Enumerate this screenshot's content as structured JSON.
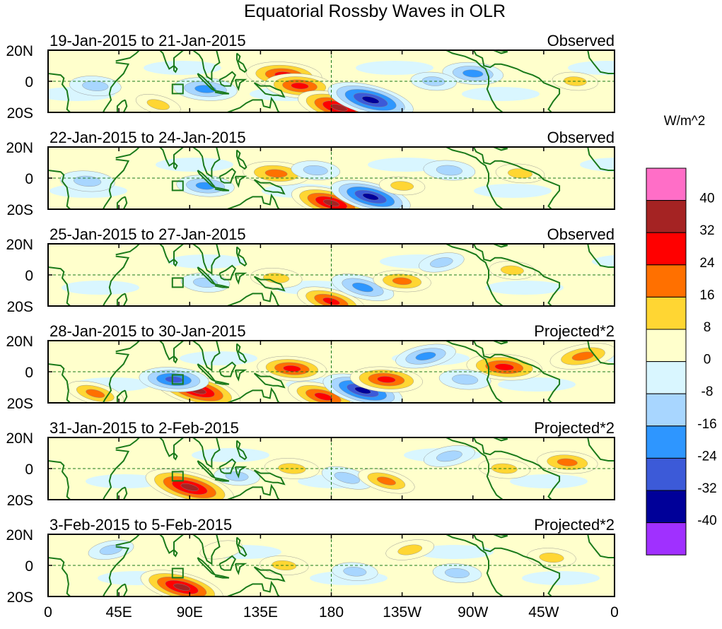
{
  "chart_data": {
    "type": "heatmap",
    "title": "Equatorial Rossby Waves in OLR",
    "colorbar": {
      "unit_label": "W/m^2",
      "tick_labels": [
        "40",
        "32",
        "24",
        "16",
        "8",
        "0",
        "-8",
        "-16",
        "-24",
        "-32",
        "-40"
      ],
      "levels": [
        -40,
        -32,
        -24,
        -16,
        -8,
        0,
        8,
        16,
        24,
        32,
        40
      ],
      "colors_top_to_bottom": [
        "#ff6ec7",
        "#a52323",
        "#ff0000",
        "#ff7000",
        "#ffd633",
        "#ffffcc",
        "#d9f6ff",
        "#a8d6ff",
        "#2e96ff",
        "#3c5ad8",
        "#000099",
        "#a030ff"
      ]
    },
    "x_axis": {
      "ticks": [
        {
          "lon": 0,
          "label": "0"
        },
        {
          "lon": 45,
          "label": "45E"
        },
        {
          "lon": 90,
          "label": "90E"
        },
        {
          "lon": 135,
          "label": "135E"
        },
        {
          "lon": 180,
          "label": "180"
        },
        {
          "lon": 225,
          "label": "135W"
        },
        {
          "lon": 270,
          "label": "90W"
        },
        {
          "lon": 315,
          "label": "45W"
        },
        {
          "lon": 360,
          "label": "0"
        }
      ],
      "range": [
        0,
        360
      ]
    },
    "y_axis": {
      "ticks": [
        {
          "lat": 20,
          "label": "20N"
        },
        {
          "lat": 0,
          "label": "0"
        },
        {
          "lat": -20,
          "label": "20S"
        }
      ],
      "range": [
        -20,
        20
      ]
    },
    "panels": [
      {
        "date_range": "19-Jan-2015 to 21-Jan-2015",
        "status": "Observed",
        "anomalies": [
          {
            "lon": 150,
            "lat": 4,
            "value": 30
          },
          {
            "lon": 160,
            "lat": -3,
            "value": 26
          },
          {
            "lon": 185,
            "lat": -17,
            "value": 36
          },
          {
            "lon": 205,
            "lat": -12,
            "value": -38
          },
          {
            "lon": 270,
            "lat": 5,
            "value": -20
          },
          {
            "lon": 245,
            "lat": 0,
            "value": -10
          },
          {
            "lon": 100,
            "lat": -5,
            "value": -22
          },
          {
            "lon": 30,
            "lat": -3,
            "value": -14
          },
          {
            "lon": 70,
            "lat": -15,
            "value": 10
          },
          {
            "lon": 335,
            "lat": 0,
            "value": 10
          }
        ]
      },
      {
        "date_range": "22-Jan-2015 to 24-Jan-2015",
        "status": "Observed",
        "anomalies": [
          {
            "lon": 145,
            "lat": 3,
            "value": 24
          },
          {
            "lon": 180,
            "lat": -16,
            "value": 34
          },
          {
            "lon": 205,
            "lat": -12,
            "value": -34
          },
          {
            "lon": 225,
            "lat": -5,
            "value": 10
          },
          {
            "lon": 255,
            "lat": 5,
            "value": -14
          },
          {
            "lon": 300,
            "lat": 3,
            "value": 12
          },
          {
            "lon": 25,
            "lat": -2,
            "value": -16
          },
          {
            "lon": 100,
            "lat": -5,
            "value": -18
          },
          {
            "lon": 170,
            "lat": 5,
            "value": -12
          }
        ]
      },
      {
        "date_range": "25-Jan-2015 to 27-Jan-2015",
        "status": "Observed",
        "anomalies": [
          {
            "lon": 180,
            "lat": -17,
            "value": 26
          },
          {
            "lon": 200,
            "lat": -8,
            "value": -22
          },
          {
            "lon": 225,
            "lat": -4,
            "value": 18
          },
          {
            "lon": 145,
            "lat": -2,
            "value": 14
          },
          {
            "lon": 250,
            "lat": 8,
            "value": -10
          },
          {
            "lon": 295,
            "lat": 3,
            "value": 10
          },
          {
            "lon": 100,
            "lat": -5,
            "value": -12
          }
        ]
      },
      {
        "date_range": "28-Jan-2015 to 30-Jan-2015",
        "status": "Projected*2",
        "anomalies": [
          {
            "lon": 95,
            "lat": -12,
            "value": 38
          },
          {
            "lon": 175,
            "lat": -16,
            "value": 28
          },
          {
            "lon": 200,
            "lat": -12,
            "value": -34
          },
          {
            "lon": 215,
            "lat": -5,
            "value": 28
          },
          {
            "lon": 155,
            "lat": 2,
            "value": 26
          },
          {
            "lon": 290,
            "lat": 3,
            "value": 30
          },
          {
            "lon": 340,
            "lat": 10,
            "value": 24
          },
          {
            "lon": 80,
            "lat": -5,
            "value": -26
          },
          {
            "lon": 240,
            "lat": 10,
            "value": -20
          },
          {
            "lon": 30,
            "lat": -14,
            "value": 18
          },
          {
            "lon": 265,
            "lat": -5,
            "value": -14
          }
        ]
      },
      {
        "date_range": "31-Jan-2015 to 2-Feb-2015",
        "status": "Projected*2",
        "anomalies": [
          {
            "lon": 90,
            "lat": -12,
            "value": 40
          },
          {
            "lon": 155,
            "lat": 0,
            "value": 16
          },
          {
            "lon": 190,
            "lat": -6,
            "value": -14
          },
          {
            "lon": 215,
            "lat": -8,
            "value": 18
          },
          {
            "lon": 290,
            "lat": 0,
            "value": 14
          },
          {
            "lon": 330,
            "lat": 4,
            "value": 20
          },
          {
            "lon": 255,
            "lat": 8,
            "value": -14
          },
          {
            "lon": 120,
            "lat": -5,
            "value": -10
          }
        ]
      },
      {
        "date_range": "3-Feb-2015 to 5-Feb-2015",
        "status": "Projected*2",
        "anomalies": [
          {
            "lon": 85,
            "lat": -14,
            "value": 36
          },
          {
            "lon": 150,
            "lat": 0,
            "value": 12
          },
          {
            "lon": 230,
            "lat": 10,
            "value": 12
          },
          {
            "lon": 320,
            "lat": 5,
            "value": 12
          },
          {
            "lon": 195,
            "lat": -4,
            "value": -10
          },
          {
            "lon": 260,
            "lat": -5,
            "value": -12
          },
          {
            "lon": 40,
            "lat": 10,
            "value": -10
          },
          {
            "lon": 110,
            "lat": 10,
            "value": 8
          }
        ]
      }
    ]
  }
}
